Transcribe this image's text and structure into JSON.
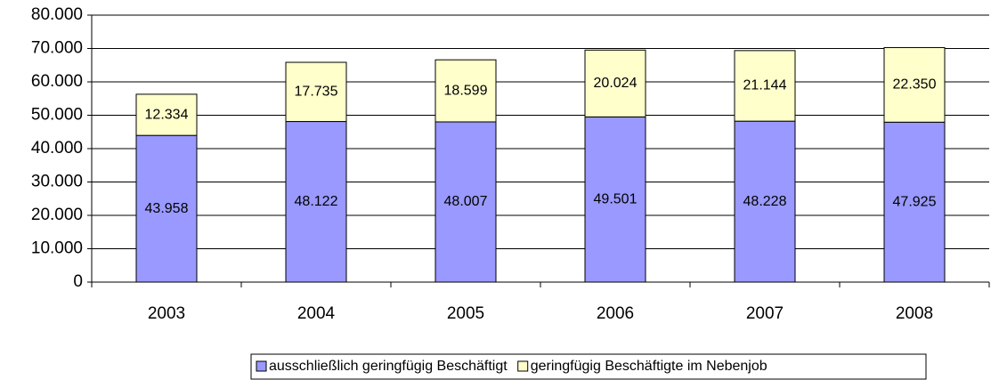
{
  "chart_data": {
    "type": "stacked_bar",
    "categories": [
      "2003",
      "2004",
      "2005",
      "2006",
      "2007",
      "2008"
    ],
    "series": [
      {
        "name": "ausschließlich geringfügig Beschäftigt",
        "color": "#9999ff",
        "values": [
          43958,
          48122,
          48007,
          49501,
          48228,
          47925
        ],
        "value_labels": [
          "43.958",
          "48.122",
          "48.007",
          "49.501",
          "48.228",
          "47.925"
        ]
      },
      {
        "name": "geringfügig Beschäftigte im Nebenjob",
        "color": "#ffffcc",
        "values": [
          12334,
          17735,
          18599,
          20024,
          21144,
          22350
        ],
        "value_labels": [
          "12.334",
          "17.735",
          "18.599",
          "20.024",
          "21.144",
          "22.350"
        ]
      }
    ],
    "ylim": [
      0,
      80000
    ],
    "yticks": [
      0,
      {
        "value": 10000,
        "label": "10.000"
      },
      {
        "value": 20000,
        "label": "20.000"
      },
      {
        "value": 30000,
        "label": "30.000"
      },
      {
        "value": 40000,
        "label": "40.000"
      },
      {
        "value": 50000,
        "label": "50.000"
      },
      {
        "value": 60000,
        "label": "60.000"
      },
      {
        "value": 70000,
        "label": "70.000"
      },
      {
        "value": 80000,
        "label": "80.000"
      }
    ],
    "grid": true,
    "legend": "bottom"
  }
}
